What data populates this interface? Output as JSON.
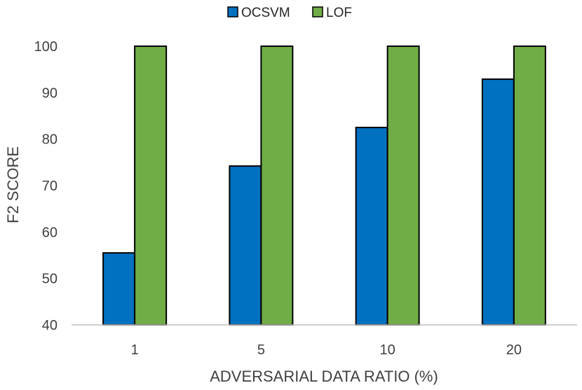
{
  "chart_data": {
    "type": "bar",
    "title": "",
    "xlabel": "ADVERSARIAL DATA RATIO (%)",
    "ylabel": "F2 SCORE",
    "categories": [
      "1",
      "5",
      "10",
      "20"
    ],
    "series": [
      {
        "name": "OCSVM",
        "color": "#0070C0",
        "values": [
          55.5,
          74.2,
          82.5,
          92.9
        ]
      },
      {
        "name": "LOF",
        "color": "#70AD47",
        "values": [
          100,
          100,
          100,
          100
        ]
      }
    ],
    "ylim": [
      40,
      100
    ],
    "yticks": [
      40,
      50,
      60,
      70,
      80,
      90,
      100
    ],
    "grid": false,
    "legend_position": "top-center"
  }
}
